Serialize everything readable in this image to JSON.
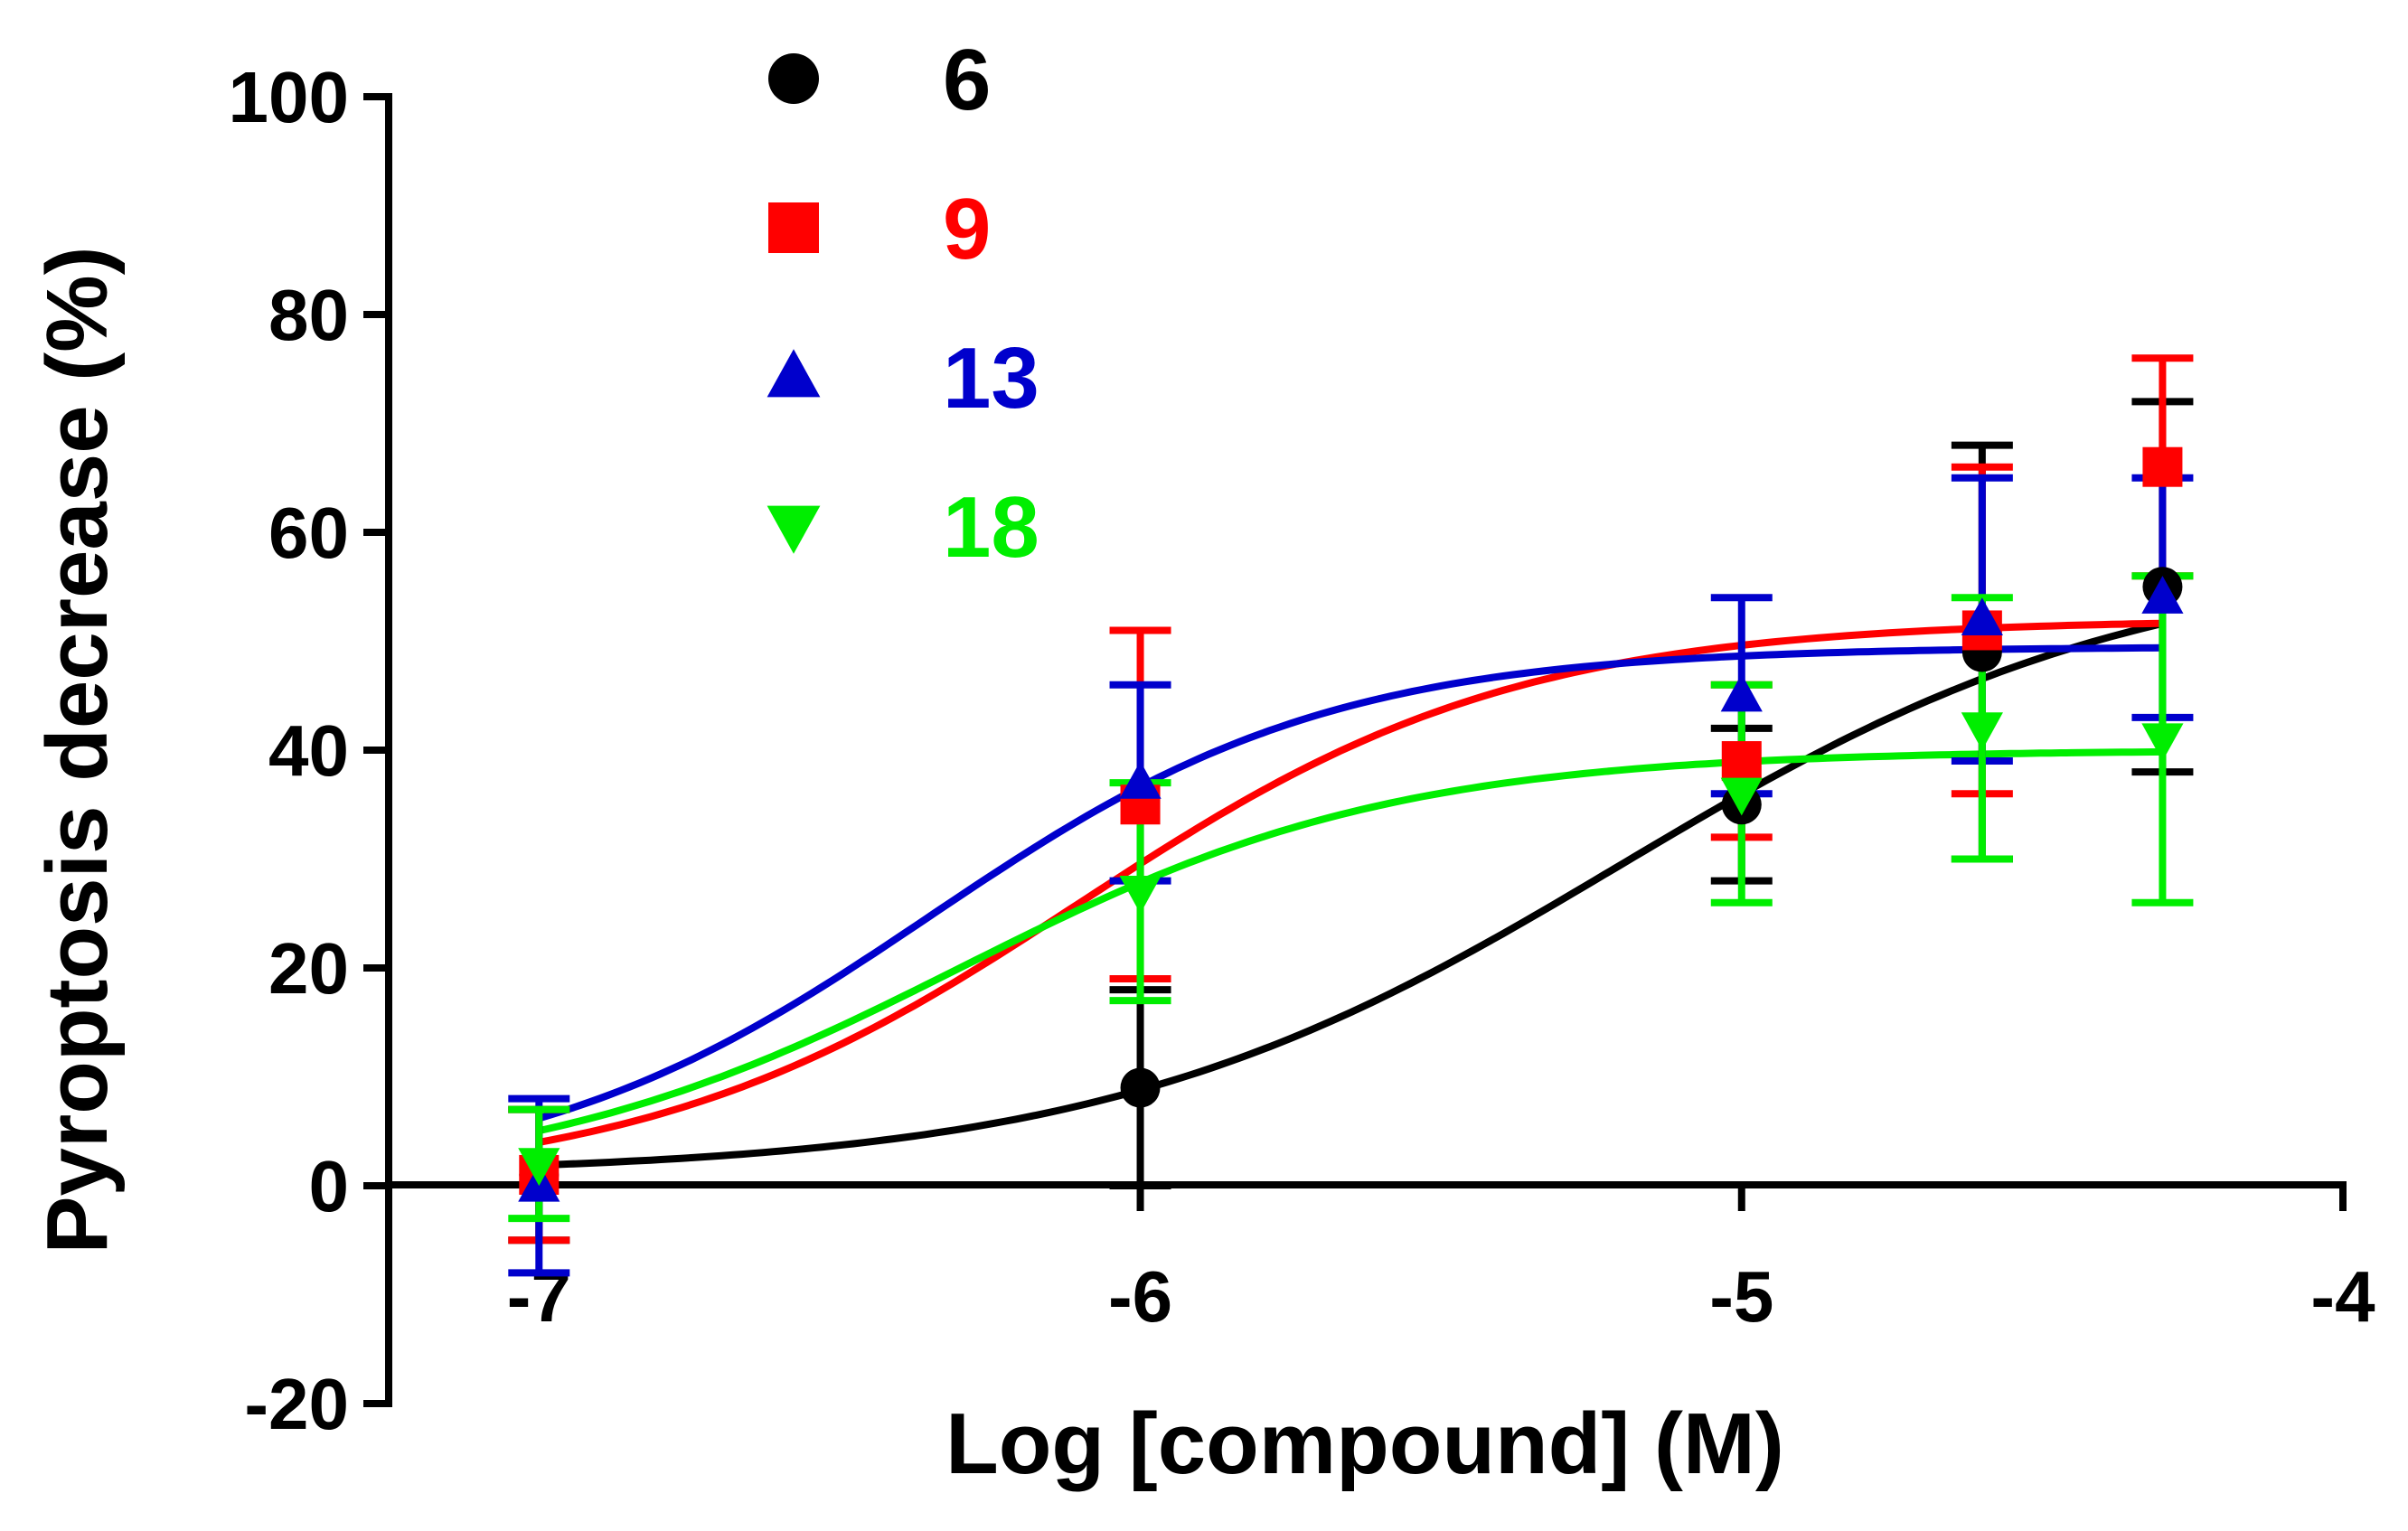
{
  "chart_data": {
    "type": "scatter",
    "title": "",
    "xlabel": "Log [compound] (M)",
    "ylabel": "Pyroptosis decrease  (%)",
    "xlim": [
      -7.25,
      -4
    ],
    "ylim": [
      -20,
      100
    ],
    "xticks": [
      -7,
      -6,
      -5,
      -4
    ],
    "xtick_labels": [
      "-7",
      "-6",
      "-5",
      "-4"
    ],
    "yticks": [
      -20,
      0,
      20,
      40,
      60,
      80,
      100
    ],
    "ytick_labels": [
      "-20",
      "0",
      "20",
      "40",
      "60",
      "80",
      "100"
    ],
    "legend_position": "top-left",
    "series": [
      {
        "name": "6",
        "color": "#000000",
        "marker": "circle",
        "x": [
          -7,
          -6,
          -5,
          -4.6,
          -4.3
        ],
        "y": [
          1,
          9,
          35,
          49,
          55
        ],
        "err": [
          6,
          9,
          7,
          19,
          17
        ],
        "fit": {
          "bottom": 1,
          "top": 58,
          "logec50": -5.2,
          "hill": 1.0
        }
      },
      {
        "name": "9",
        "color": "#ff0000",
        "marker": "square",
        "x": [
          -7,
          -6,
          -5,
          -4.6,
          -4.3
        ],
        "y": [
          1,
          35,
          39,
          51,
          66
        ],
        "err": [
          6,
          16,
          7,
          15,
          10
        ],
        "fit": {
          "bottom": 0,
          "top": 52,
          "logec50": -6.1,
          "hill": 1.2
        }
      },
      {
        "name": "13",
        "color": "#0000cc",
        "marker": "triangle-up",
        "x": [
          -7,
          -6,
          -5,
          -4.6,
          -4.3
        ],
        "y": [
          0,
          37,
          45,
          52,
          54
        ],
        "err": [
          8,
          9,
          9,
          13,
          11
        ],
        "fit": {
          "bottom": 0,
          "top": 49.5,
          "logec50": -6.35,
          "hill": 1.3
        }
      },
      {
        "name": "18",
        "color": "#00ee00",
        "marker": "triangle-down",
        "x": [
          -7,
          -6,
          -5,
          -4.6,
          -4.3
        ],
        "y": [
          2,
          27,
          36,
          42,
          41
        ],
        "err": [
          5,
          10,
          10,
          12,
          15
        ],
        "fit": {
          "bottom": 0,
          "top": 40,
          "logec50": -6.3,
          "hill": 1.2
        }
      }
    ]
  }
}
